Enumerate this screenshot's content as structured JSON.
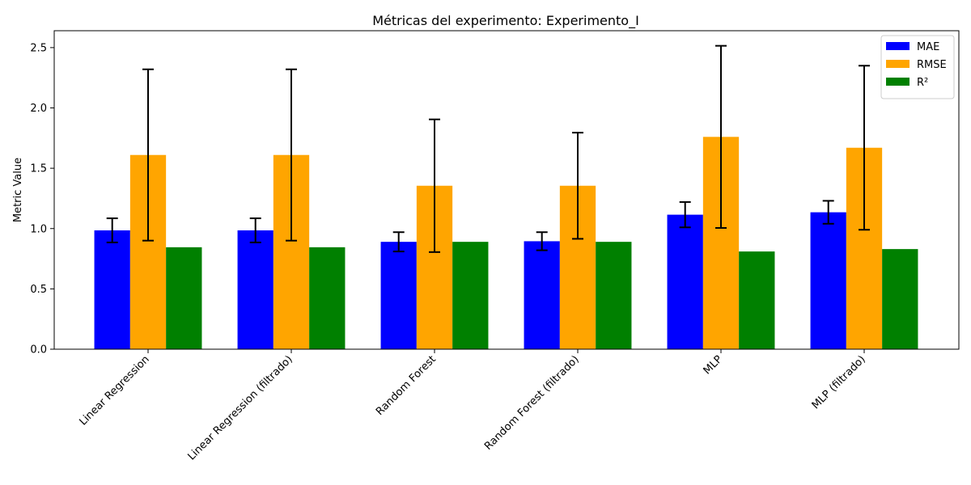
{
  "chart_data": {
    "type": "bar",
    "title": "Métricas del experimento: Experimento_I",
    "xlabel": "",
    "ylabel": "Metric Value",
    "ylim": [
      0,
      2.64
    ],
    "yticks": [
      0.0,
      0.5,
      1.0,
      1.5,
      2.0,
      2.5
    ],
    "ytick_labels": [
      "0.0",
      "0.5",
      "1.0",
      "1.5",
      "2.0",
      "2.5"
    ],
    "categories": [
      "Linear Regression",
      "Linear Regression (filtrado)",
      "Random Forest",
      "Random Forest (filtrado)",
      "MLP",
      "MLP (filtrado)"
    ],
    "series": [
      {
        "name": "MAE",
        "color": "#0000ff",
        "values": [
          0.985,
          0.985,
          0.89,
          0.895,
          1.115,
          1.135
        ],
        "errors": [
          0.1,
          0.1,
          0.08,
          0.075,
          0.105,
          0.095
        ]
      },
      {
        "name": "RMSE",
        "color": "#ffa500",
        "values": [
          1.61,
          1.61,
          1.355,
          1.355,
          1.76,
          1.67
        ],
        "errors": [
          0.71,
          0.71,
          0.55,
          0.44,
          0.755,
          0.68
        ]
      },
      {
        "name": "R²",
        "color": "#008000",
        "values": [
          0.845,
          0.845,
          0.89,
          0.89,
          0.81,
          0.83
        ],
        "errors": null
      }
    ],
    "legend_position": "top-right",
    "grid": false
  }
}
